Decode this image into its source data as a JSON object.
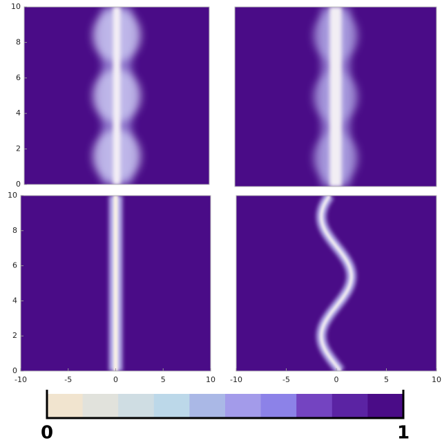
{
  "chart_data": [
    {
      "type": "density",
      "xlim": [
        -10,
        10
      ],
      "ylim": [
        0,
        10
      ],
      "yticks": [
        0,
        2,
        4,
        6,
        8,
        10
      ],
      "background": "#4a0c87"
    },
    {
      "type": "density",
      "xlim": [
        -10,
        10
      ],
      "ylim": [
        0,
        10
      ],
      "background": "#4a0c87"
    },
    {
      "type": "density",
      "xlim": [
        -10,
        10
      ],
      "ylim": [
        0,
        10
      ],
      "xticks": [
        -10,
        -5,
        0,
        5,
        10
      ],
      "yticks": [
        0,
        2,
        4,
        6,
        8,
        10
      ],
      "background": "#4a0c87"
    },
    {
      "type": "density",
      "xlim": [
        -10,
        10
      ],
      "ylim": [
        0,
        10
      ],
      "xticks": [
        -10,
        -5,
        0,
        5,
        10
      ],
      "background": "#4a0c87"
    },
    {
      "type": "colorbar",
      "xlim": [
        0,
        1
      ],
      "xticks": [
        0,
        1
      ],
      "colors": [
        "#f1e4cf",
        "#e1e2dc",
        "#cfdde3",
        "#bcd8e9",
        "#aab8e6",
        "#a39bea",
        "#8c82e8",
        "#7444c1",
        "#5b23a3",
        "#4a0c87"
      ]
    }
  ]
}
